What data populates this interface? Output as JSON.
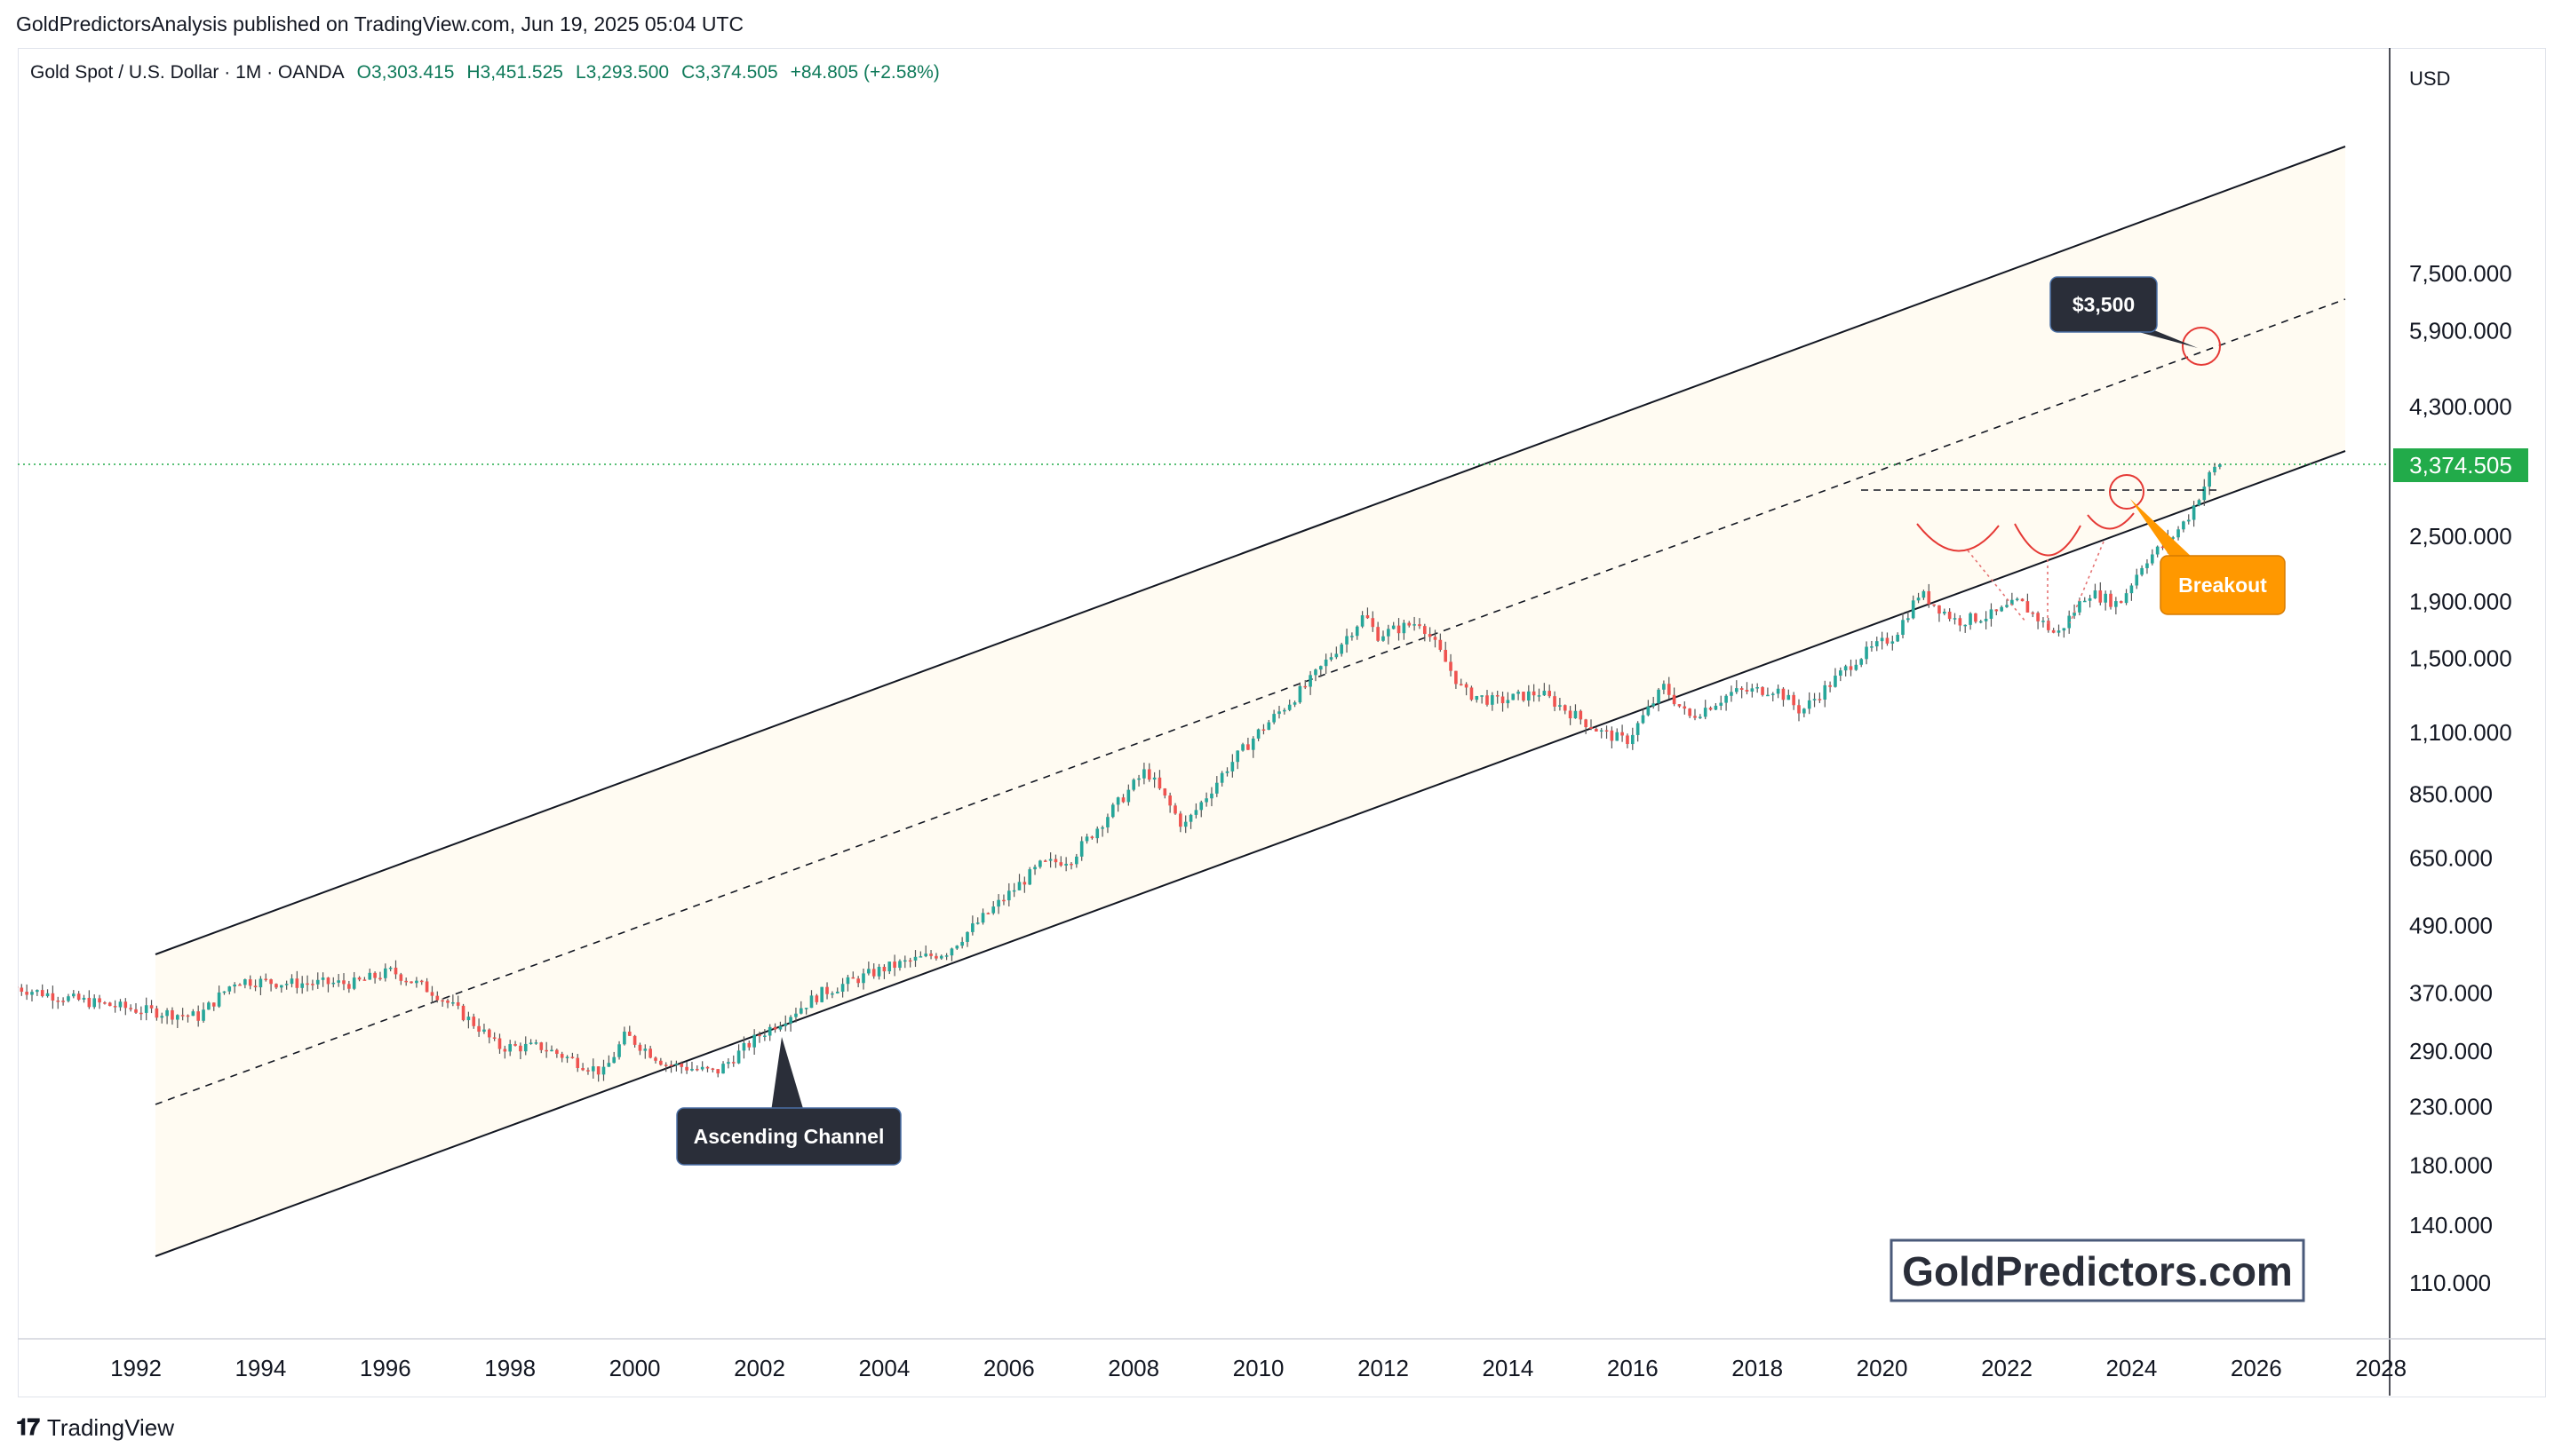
{
  "caption": "GoldPredictorsAnalysis published on TradingView.com, Jun 19, 2025 05:04 UTC",
  "legend": {
    "symbol": "Gold Spot / U.S. Dollar · 1M · OANDA",
    "open": "O3,303.415",
    "high": "H3,451.525",
    "low": "L3,293.500",
    "close": "C3,374.505",
    "change": "+84.805 (+2.58%)"
  },
  "footer": {
    "brand": "TradingView"
  },
  "colors": {
    "up": "#26a69a",
    "down": "#ef5350",
    "price_badge": "#22ab4a",
    "channel_fill": "#fffbf2",
    "callout_dark": "#2a2e39",
    "callout_orange": "#ff9800",
    "wick": "#555555"
  },
  "chart_data": {
    "type": "candlestick",
    "scale": "log",
    "currency_label": "USD",
    "x_ticks": [
      "1992",
      "1994",
      "1996",
      "1998",
      "2000",
      "2002",
      "2004",
      "2006",
      "2008",
      "2010",
      "2012",
      "2014",
      "2016",
      "2018",
      "2020",
      "2022",
      "2024",
      "2026",
      "2028"
    ],
    "y_ticks": [
      "7,500.000",
      "5,900.000",
      "4,300.000",
      "2,500.000",
      "1,900.000",
      "1,500.000",
      "1,100.000",
      "850.000",
      "650.000",
      "490.000",
      "370.000",
      "290.000",
      "230.000",
      "180.000",
      "140.000",
      "110.000"
    ],
    "last_price": "3,374.505",
    "price_path": [
      [
        1990.0,
        380
      ],
      [
        1991.0,
        360
      ],
      [
        1992.0,
        345
      ],
      [
        1993.0,
        335
      ],
      [
        1993.6,
        390
      ],
      [
        1994.5,
        385
      ],
      [
        1995.5,
        385
      ],
      [
        1996.1,
        405
      ],
      [
        1996.8,
        370
      ],
      [
        1997.5,
        320
      ],
      [
        1997.8,
        295
      ],
      [
        1998.5,
        295
      ],
      [
        1999.5,
        265
      ],
      [
        1999.85,
        310
      ],
      [
        2000.5,
        275
      ],
      [
        2001.3,
        265
      ],
      [
        2002.0,
        310
      ],
      [
        2003.0,
        370
      ],
      [
        2004.0,
        410
      ],
      [
        2005.0,
        440
      ],
      [
        2006.0,
        560
      ],
      [
        2006.5,
        630
      ],
      [
        2007.0,
        650
      ],
      [
        2008.2,
        940
      ],
      [
        2008.8,
        740
      ],
      [
        2009.5,
        950
      ],
      [
        2010.0,
        1100
      ],
      [
        2010.8,
        1350
      ],
      [
        2011.7,
        1800
      ],
      [
        2011.9,
        1650
      ],
      [
        2012.6,
        1750
      ],
      [
        2013.3,
        1300
      ],
      [
        2013.8,
        1250
      ],
      [
        2014.5,
        1300
      ],
      [
        2015.5,
        1100
      ],
      [
        2015.9,
        1060
      ],
      [
        2016.5,
        1330
      ],
      [
        2016.9,
        1170
      ],
      [
        2017.6,
        1300
      ],
      [
        2018.3,
        1320
      ],
      [
        2018.7,
        1200
      ],
      [
        2019.6,
        1500
      ],
      [
        2020.2,
        1650
      ],
      [
        2020.6,
        1970
      ],
      [
        2021.2,
        1750
      ],
      [
        2021.8,
        1800
      ],
      [
        2022.2,
        1900
      ],
      [
        2022.8,
        1650
      ],
      [
        2023.3,
        1980
      ],
      [
        2023.8,
        1880
      ],
      [
        2024.2,
        2250
      ],
      [
        2024.6,
        2450
      ],
      [
        2024.9,
        2700
      ],
      [
        2025.3,
        3300
      ],
      [
        2025.46,
        3374.505
      ]
    ],
    "annotations": [
      {
        "text": "$3,500",
        "type": "callout"
      },
      {
        "text": "Breakout",
        "type": "callout"
      },
      {
        "text": "Ascending Channel",
        "type": "callout"
      }
    ],
    "watermark": "GoldPredictors.com"
  }
}
